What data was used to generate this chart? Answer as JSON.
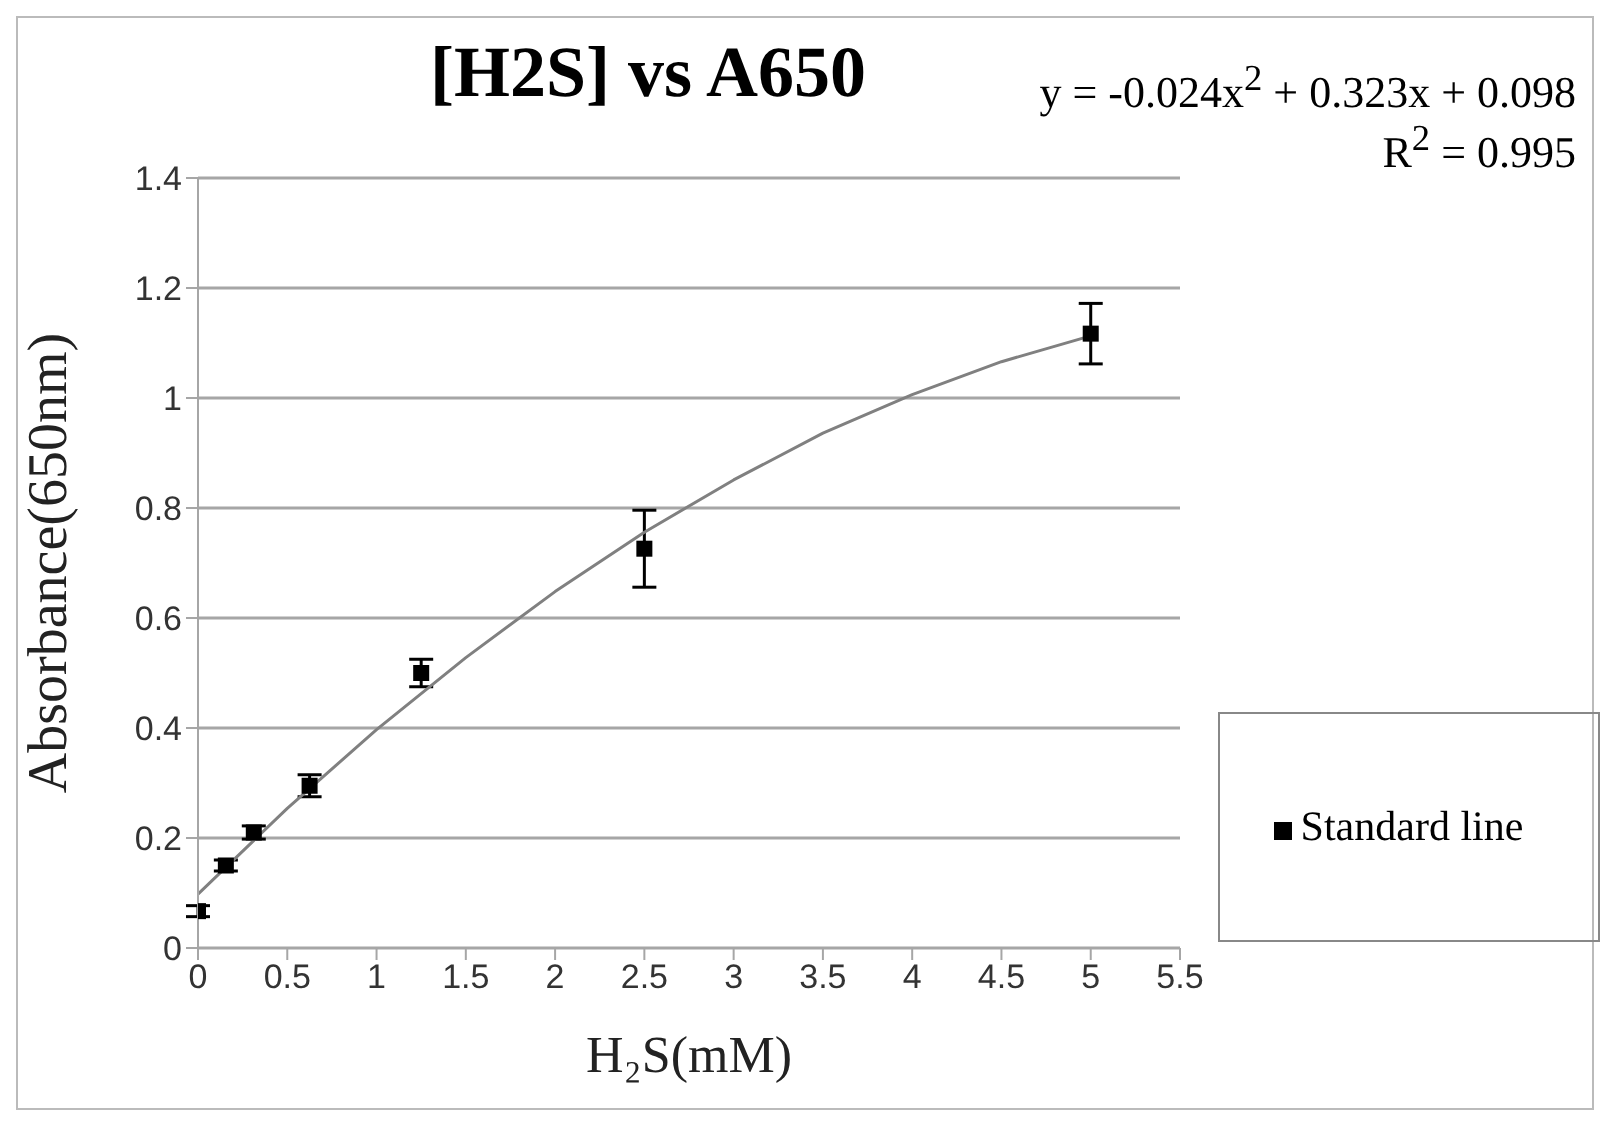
{
  "chart_data": {
    "type": "scatter",
    "title": "[H2S] vs A650",
    "xlabel": "H₂S(mM)",
    "ylabel": "Absorbance(650nm)",
    "annotations": [
      "y = -0.024x$^{2}$ + 0.323x + 0.098",
      "R$^{2}$ = 0.995"
    ],
    "series": [
      {
        "name": "Standard line",
        "color": "#000000",
        "marker": "square",
        "x": [
          0,
          0.156,
          0.3125,
          0.625,
          1.25,
          2.5,
          5
        ],
        "values": [
          0.067,
          0.15,
          0.21,
          0.295,
          0.5,
          0.726,
          1.117
        ],
        "errors": [
          0.01,
          0.01,
          0.012,
          0.02,
          0.025,
          0.07,
          0.055
        ]
      },
      {
        "type": "line",
        "color": "#808080",
        "x": [
          0,
          0.5,
          1,
          1.5,
          2,
          2.5,
          3,
          3.5,
          4,
          4.5,
          5
        ],
        "values": [
          0.098,
          0.254,
          0.397,
          0.528,
          0.648,
          0.756,
          0.851,
          0.936,
          1.006,
          1.066,
          1.113
        ]
      }
    ],
    "xlim": [
      0,
      5.5
    ],
    "xticks": [
      0,
      0.5,
      1,
      1.5,
      2,
      2.5,
      3,
      3.5,
      4,
      4.5,
      5,
      5.5
    ],
    "ylim": [
      0,
      1.4
    ],
    "yticks": [
      0,
      0.2,
      0.4,
      0.6,
      0.8,
      1,
      1.2,
      1.4
    ],
    "grid": "y",
    "legend": "right"
  }
}
